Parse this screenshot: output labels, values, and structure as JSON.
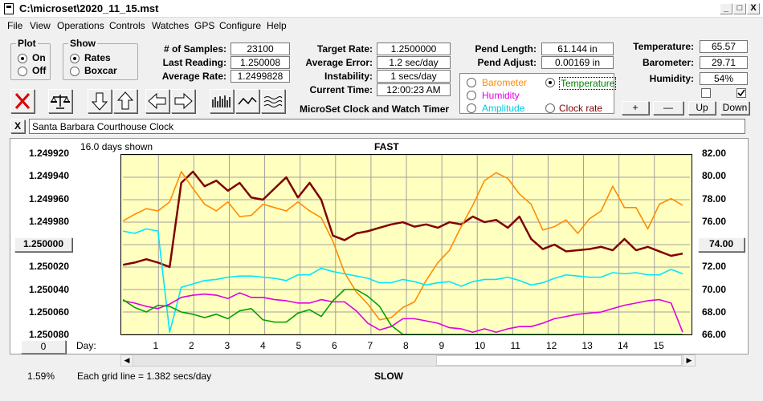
{
  "window": {
    "title": "C:\\microset\\2020_11_15.mst",
    "min": "_",
    "max": "□",
    "close": "X"
  },
  "menu": [
    "File",
    "View",
    "Operations",
    "Controls",
    "Watches",
    "GPS",
    "Configure",
    "Help"
  ],
  "plot_group": {
    "title": "Plot",
    "on": "On",
    "off": "Off",
    "selected": "On"
  },
  "show_group": {
    "title": "Show",
    "rates": "Rates",
    "boxcar": "Boxcar",
    "selected": "Rates"
  },
  "stats": {
    "samples_label": "# of Samples:",
    "samples": "23100",
    "last_label": "Last Reading:",
    "last": "1.250008",
    "avg_label": "Average Rate:",
    "avg": "1.2499828",
    "target_label": "Target Rate:",
    "target": "1.2500000",
    "err_label": "Average Error:",
    "err": "1.2 sec/day",
    "inst_label": "Instability:",
    "inst": "1 secs/day",
    "time_label": "Current Time:",
    "time": "12:00:23 AM",
    "app_name": "MicroSet Clock and Watch Timer",
    "pend_len_label": "Pend Length:",
    "pend_len": "61.144 in",
    "pend_adj_label": "Pend Adjust:",
    "pend_adj": "0.00169 in",
    "temp_label": "Temperature:",
    "temp": "65.57",
    "baro_label": "Barometer:",
    "baro": "29.71",
    "hum_label": "Humidity:",
    "hum": "54%"
  },
  "right_axis_options": {
    "barometer": "Barometer",
    "temperature": "Temperature",
    "humidity": "Humidity",
    "amplitude": "Amplitude",
    "clock_rate": "Clock rate",
    "selected": "Temperature"
  },
  "scale_buttons": {
    "plus": "+",
    "minus": "—",
    "up": "Up",
    "down": "Down"
  },
  "clock_name": "Santa Barbara Courthouse Clock",
  "clear_btn": "X",
  "graph": {
    "days_shown": "16.0 days shown",
    "top_label": "FAST",
    "bottom_label": "SLOW",
    "day_label": "Day:",
    "grid_note": "Each grid line = 1.382 secs/day",
    "left_value_btn": "1.250000",
    "right_value_btn": "74.00",
    "zero_btn": "0",
    "percent": "1.59%"
  },
  "colors": {
    "plot_bg": "#ffffc0",
    "rate": "#800000",
    "temperature": "#ff8c00",
    "amplitude": "#00e5ff",
    "humidity": "#e000e0",
    "green": "#00a000"
  },
  "chart_data": {
    "type": "line",
    "left_axis_ticks": [
      "1.249920",
      "1.249940",
      "1.249960",
      "1.249980",
      "1.250000",
      "1.250020",
      "1.250040",
      "1.250060",
      "1.250080"
    ],
    "right_axis_ticks": [
      "82.00",
      "80.00",
      "78.00",
      "76.00",
      "74.00",
      "72.00",
      "70.00",
      "68.00",
      "66.00"
    ],
    "x_ticks": [
      "1",
      "2",
      "3",
      "4",
      "5",
      "6",
      "7",
      "8",
      "9",
      "10",
      "11",
      "12",
      "13",
      "14",
      "15"
    ],
    "xlim": [
      0,
      16
    ],
    "series": [
      {
        "color": "#800000",
        "y": [
          1.250018,
          1.250016,
          1.250013,
          1.250016,
          1.25002,
          1.249945,
          1.249935,
          1.249948,
          1.249943,
          1.249952,
          1.249945,
          1.249958,
          1.24996,
          1.24995,
          1.24994,
          1.249958,
          1.249945,
          1.24996,
          1.249992,
          1.249996,
          1.24999,
          1.249988,
          1.249985,
          1.249982,
          1.24998,
          1.249984,
          1.249982,
          1.249985,
          1.24998,
          1.249982,
          1.249975,
          1.24998,
          1.249978,
          1.249985,
          1.249975,
          1.249995,
          1.250004,
          1.25,
          1.250006,
          1.250005,
          1.250004,
          1.250002,
          1.250005,
          1.249995,
          1.250005,
          1.250002,
          1.250006,
          1.25001,
          1.250008
        ]
      },
      {
        "color": "#ff8c00",
        "y": [
          76.1,
          76.7,
          77.2,
          77.0,
          77.8,
          80.5,
          79.0,
          77.6,
          77.0,
          77.8,
          76.5,
          76.6,
          77.6,
          77.3,
          77.0,
          77.8,
          77.0,
          76.4,
          74.3,
          71.5,
          69.8,
          68.7,
          67.3,
          67.5,
          68.4,
          68.9,
          70.8,
          72.4,
          73.5,
          75.6,
          77.5,
          79.7,
          80.4,
          79.9,
          78.5,
          77.6,
          75.3,
          75.6,
          76.2,
          75.0,
          76.3,
          77.0,
          79.2,
          77.3,
          77.3,
          75.4,
          77.6,
          78.1,
          77.5
        ]
      },
      {
        "color": "#00e5ff",
        "y": [
          75.2,
          75.0,
          75.4,
          75.2,
          66.2,
          70.2,
          70.5,
          70.8,
          70.9,
          71.1,
          71.2,
          71.2,
          71.1,
          71.0,
          70.8,
          71.3,
          71.3,
          71.9,
          71.6,
          71.4,
          71.2,
          71.0,
          70.6,
          70.6,
          70.9,
          70.7,
          70.4,
          70.6,
          70.7,
          70.3,
          70.7,
          70.9,
          70.9,
          71.1,
          70.8,
          70.4,
          70.6,
          71.0,
          71.3,
          71.2,
          71.1,
          71.1,
          71.5,
          71.4,
          71.5,
          71.3,
          71.3,
          71.8,
          71.4
        ]
      },
      {
        "color": "#e000e0",
        "y": [
          69.0,
          68.8,
          68.5,
          68.3,
          68.7,
          69.3,
          69.5,
          69.6,
          69.5,
          69.2,
          69.7,
          69.3,
          69.3,
          69.1,
          69.0,
          68.8,
          68.8,
          69.1,
          68.9,
          68.9,
          68.1,
          67.0,
          66.4,
          66.7,
          67.4,
          67.4,
          67.2,
          67.0,
          66.6,
          66.5,
          66.2,
          66.5,
          66.2,
          66.5,
          66.7,
          66.7,
          67.0,
          67.4,
          67.6,
          67.8,
          67.9,
          68.0,
          68.3,
          68.6,
          68.8,
          69.0,
          69.1,
          68.8,
          66.2
        ]
      },
      {
        "color": "#00a000",
        "y": [
          69.1,
          68.4,
          68.0,
          68.6,
          68.5,
          68.0,
          67.8,
          67.5,
          67.8,
          67.4,
          68.1,
          68.3,
          67.3,
          67.1,
          67.1,
          67.9,
          68.2,
          67.6,
          69.0,
          70.0,
          70.0,
          69.4,
          68.5,
          66.8,
          66.0,
          66.0,
          66.0,
          66.0,
          66.0,
          66.0,
          66.0,
          66.0,
          66.0,
          66.0,
          66.0,
          66.0,
          66.0,
          66.0,
          66.0,
          66.0,
          66.0,
          66.0,
          66.0,
          66.0,
          66.0,
          66.0,
          66.0,
          66.0,
          66.0
        ]
      }
    ]
  }
}
